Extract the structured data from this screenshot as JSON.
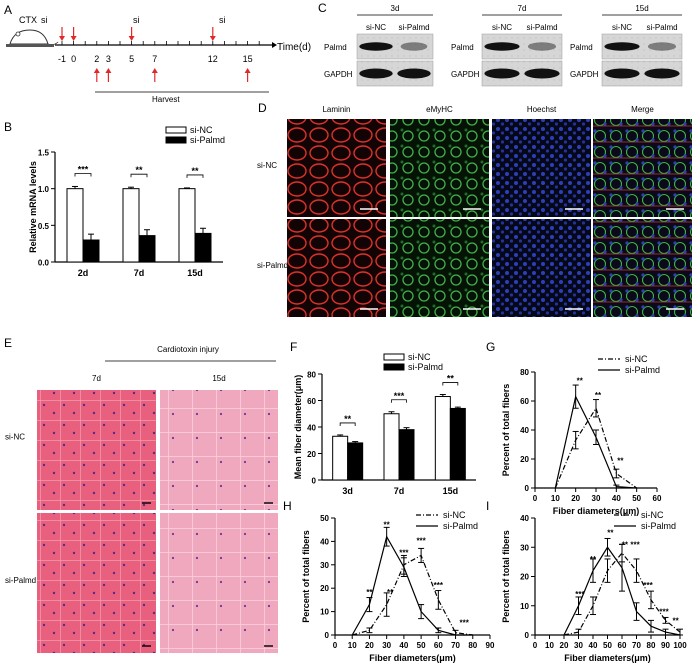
{
  "panels": {
    "A": {
      "letter": "A",
      "time_label": "Time(d)",
      "ctx_label": "CTX",
      "si_label": "si",
      "ticks": [
        "-1",
        "0",
        "2",
        "3",
        "5",
        "7",
        "12",
        "15"
      ],
      "harvest_label": "Harvest"
    },
    "B": {
      "letter": "B",
      "ylabel": "Relative mRNA levels",
      "legend": [
        "si-NC",
        "si-Palmd"
      ],
      "categories": [
        "2d",
        "7d",
        "15d"
      ],
      "yticks": [
        "0.0",
        "0.5",
        "1.0",
        "1.5"
      ],
      "sig": [
        "***",
        "**",
        "**"
      ]
    },
    "C": {
      "letter": "C",
      "timepoints": [
        "3d",
        "7d",
        "15d"
      ],
      "lanes": [
        "si-NC",
        "si-Palmd"
      ],
      "rows": [
        "Palmd",
        "GAPDH"
      ]
    },
    "D": {
      "letter": "D",
      "columns": [
        "Laminin",
        "eMyHC",
        "Hoechst",
        "Merge"
      ],
      "rows": [
        "si-NC",
        "si-Palmd"
      ]
    },
    "E": {
      "letter": "E",
      "title": "Cardiotoxin injury",
      "columns": [
        "7d",
        "15d"
      ],
      "rows": [
        "si-NC",
        "si-Palmd"
      ]
    },
    "F": {
      "letter": "F",
      "ylabel": "Mean fiber diameter(μm)",
      "legend": [
        "si-NC",
        "si-Palmd"
      ],
      "categories": [
        "3d",
        "7d",
        "15d"
      ],
      "yticks": [
        "0",
        "20",
        "40",
        "60",
        "80"
      ],
      "sig": [
        "**",
        "***",
        "**"
      ]
    },
    "G": {
      "letter": "G",
      "ylabel": "Percent of total fibers",
      "xlabel": "Fiber diameters(μm)",
      "legend": [
        "si-NC",
        "si-Palmd"
      ],
      "xticks": [
        "0",
        "10",
        "20",
        "30",
        "40",
        "50",
        "60"
      ],
      "yticks": [
        "0",
        "20",
        "40",
        "60",
        "80"
      ],
      "sig": [
        "**",
        "**",
        "**"
      ]
    },
    "H": {
      "letter": "H",
      "ylabel": "Percent of total fibers",
      "xlabel": "Fiber diameters(μm)",
      "legend": [
        "si-NC",
        "si-Palmd"
      ],
      "xticks": [
        "0",
        "10",
        "20",
        "30",
        "40",
        "50",
        "60",
        "70",
        "80",
        "90"
      ],
      "yticks": [
        "0",
        "10",
        "20",
        "30",
        "40",
        "50"
      ],
      "sig": [
        "**",
        "**",
        "**",
        "***",
        "***",
        "***",
        "***"
      ]
    },
    "I": {
      "letter": "I",
      "ylabel": "Percent of total fibers",
      "xlabel": "Fiber diameters(μm)",
      "legend": [
        "si-NC",
        "si-Palmd"
      ],
      "xticks": [
        "0",
        "10",
        "20",
        "30",
        "40",
        "50",
        "60",
        "70",
        "80",
        "90",
        "100"
      ],
      "yticks": [
        "0",
        "10",
        "20",
        "30",
        "40"
      ],
      "sig": [
        "***",
        "**",
        "**",
        "**",
        "***",
        "***",
        "***",
        "**"
      ]
    }
  },
  "colors": {
    "laminin": "#e0302a",
    "emyhc": "#3fb04a",
    "hoechst": "#2d3fb8",
    "he_bg": "#e8607e",
    "black": "#000000"
  },
  "chart_data": [
    {
      "panel": "B",
      "type": "bar",
      "categories": [
        "2d",
        "7d",
        "15d"
      ],
      "series": [
        {
          "name": "si-NC",
          "values": [
            1.0,
            1.0,
            1.0
          ],
          "errors": [
            0.03,
            0.02,
            0.01
          ]
        },
        {
          "name": "si-Palmd",
          "values": [
            0.3,
            0.36,
            0.39
          ],
          "errors": [
            0.08,
            0.08,
            0.07
          ]
        }
      ],
      "ylabel": "Relative mRNA levels",
      "ylim": [
        0,
        1.5
      ],
      "legend_position": "top-right"
    },
    {
      "panel": "F",
      "type": "bar",
      "categories": [
        "3d",
        "7d",
        "15d"
      ],
      "series": [
        {
          "name": "si-NC",
          "values": [
            33,
            50,
            63
          ],
          "errors": [
            1,
            1.5,
            1.5
          ]
        },
        {
          "name": "si-Palmd",
          "values": [
            28,
            38,
            54
          ],
          "errors": [
            1,
            1.5,
            1
          ]
        }
      ],
      "ylabel": "Mean fiber diameter(μm)",
      "ylim": [
        0,
        80
      ],
      "legend_position": "top-right"
    },
    {
      "panel": "G",
      "type": "line",
      "series": [
        {
          "name": "si-NC",
          "x": [
            10,
            20,
            30,
            40,
            50
          ],
          "y": [
            0,
            33,
            55,
            10,
            0
          ],
          "errors": [
            0,
            6,
            6,
            3,
            0
          ]
        },
        {
          "name": "si-Palmd",
          "x": [
            10,
            20,
            30,
            40,
            50
          ],
          "y": [
            0,
            63,
            35,
            1,
            0
          ],
          "errors": [
            0,
            8,
            5,
            1,
            0
          ]
        }
      ],
      "xlabel": "Fiber diameters(μm)",
      "ylabel": "Percent of total fibers",
      "xlim": [
        0,
        60
      ],
      "ylim": [
        0,
        80
      ],
      "legend_position": "top-right"
    },
    {
      "panel": "H",
      "type": "line",
      "series": [
        {
          "name": "si-NC",
          "x": [
            10,
            20,
            30,
            40,
            50,
            60,
            70,
            80
          ],
          "y": [
            0,
            2,
            13,
            30,
            34,
            15,
            1,
            0
          ],
          "errors": [
            0,
            1,
            5,
            4,
            3,
            4,
            1,
            0
          ]
        },
        {
          "name": "si-Palmd",
          "x": [
            10,
            20,
            30,
            40,
            50,
            60,
            70,
            80
          ],
          "y": [
            0,
            13,
            42,
            29,
            10,
            2,
            0,
            0
          ],
          "errors": [
            0,
            3,
            4,
            4,
            3,
            1,
            0,
            0
          ]
        }
      ],
      "xlabel": "Fiber diameters(μm)",
      "ylabel": "Percent of total fibers",
      "xlim": [
        0,
        90
      ],
      "ylim": [
        0,
        50
      ],
      "legend_position": "top-right"
    },
    {
      "panel": "I",
      "type": "line",
      "series": [
        {
          "name": "si-NC",
          "x": [
            20,
            30,
            40,
            50,
            60,
            70,
            80,
            90,
            100
          ],
          "y": [
            0,
            1,
            10,
            22,
            28,
            22,
            12,
            5,
            1
          ],
          "errors": [
            0,
            1,
            3,
            4,
            3,
            4,
            3,
            1,
            1
          ]
        },
        {
          "name": "si-Palmd",
          "x": [
            20,
            30,
            40,
            50,
            60,
            70,
            80,
            90,
            100
          ],
          "y": [
            0,
            10,
            22,
            30,
            23,
            8,
            3,
            1,
            0
          ],
          "errors": [
            0,
            3,
            4,
            3,
            8,
            3,
            2,
            1,
            0
          ]
        }
      ],
      "xlabel": "Fiber diameters(μm)",
      "ylabel": "Percent of total fibers",
      "xlim": [
        0,
        100
      ],
      "ylim": [
        0,
        40
      ],
      "legend_position": "top-right"
    }
  ]
}
